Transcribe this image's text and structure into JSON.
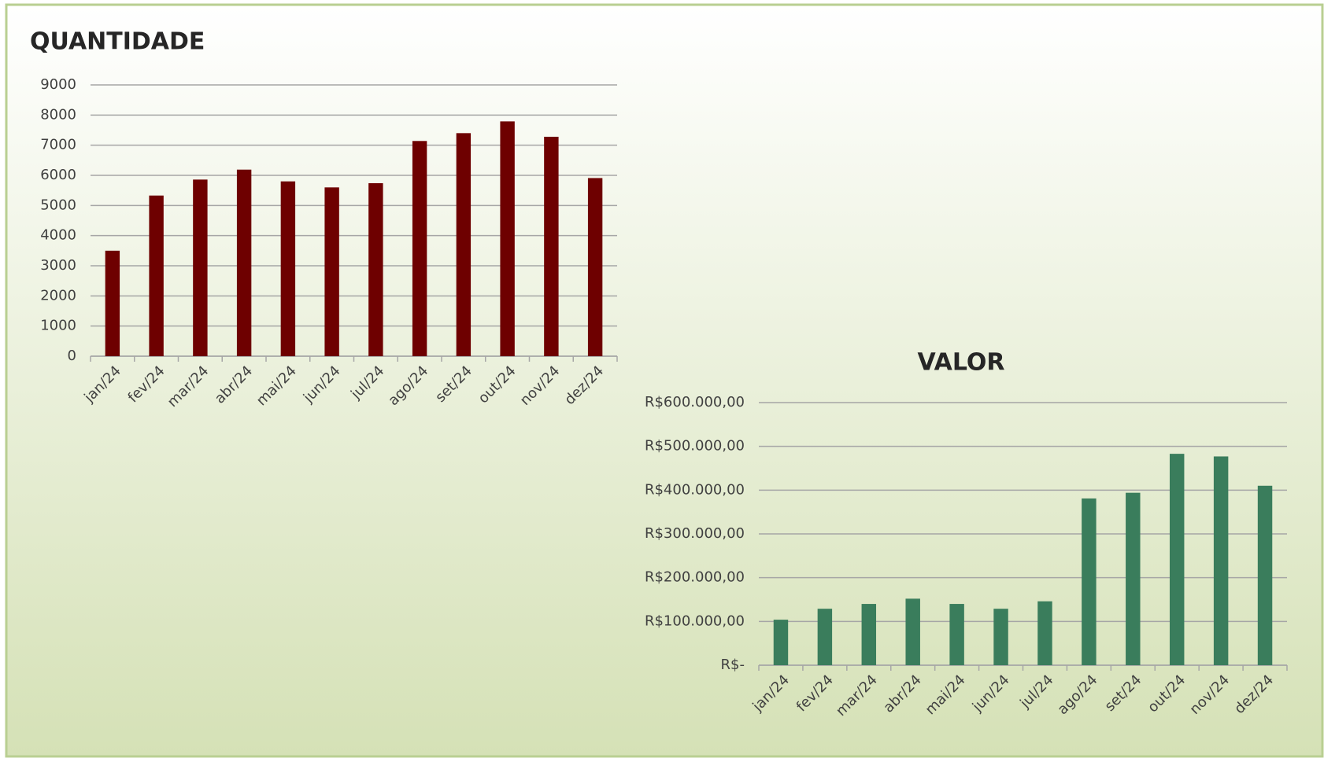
{
  "chart_data": [
    {
      "type": "bar",
      "title": "QUANTIDADE",
      "categories": [
        "jan/24",
        "fev/24",
        "mar/24",
        "abr/24",
        "mai/24",
        "jun/24",
        "jul/24",
        "ago/24",
        "set/24",
        "out/24",
        "nov/24",
        "dez/24"
      ],
      "values": [
        3500,
        5330,
        5860,
        6190,
        5800,
        5600,
        5740,
        7140,
        7400,
        7790,
        7280,
        5910
      ],
      "color": "#6e0000",
      "ylim": [
        0,
        9000
      ],
      "yticks": [
        0,
        1000,
        2000,
        3000,
        4000,
        5000,
        6000,
        7000,
        8000,
        9000
      ],
      "grid": true
    },
    {
      "type": "bar",
      "title": "VALOR",
      "categories": [
        "jan/24",
        "fev/24",
        "mar/24",
        "abr/24",
        "mai/24",
        "jun/24",
        "jul/24",
        "ago/24",
        "set/24",
        "out/24",
        "nov/24",
        "dez/24"
      ],
      "values": [
        104000,
        129000,
        140000,
        152000,
        140000,
        129000,
        146000,
        381000,
        394000,
        483000,
        477000,
        410000
      ],
      "color": "#3a7d5c",
      "ylim": [
        0,
        600000
      ],
      "yticks": [
        {
          "value": 0,
          "label": "R$-"
        },
        {
          "value": 100000,
          "label": "R$100.000,00"
        },
        {
          "value": 200000,
          "label": "R$200.000,00"
        },
        {
          "value": 300000,
          "label": "R$300.000,00"
        },
        {
          "value": 400000,
          "label": "R$400.000,00"
        },
        {
          "value": 500000,
          "label": "R$500.000,00"
        },
        {
          "value": 600000,
          "label": "R$600.000,00"
        }
      ],
      "grid": true
    }
  ]
}
